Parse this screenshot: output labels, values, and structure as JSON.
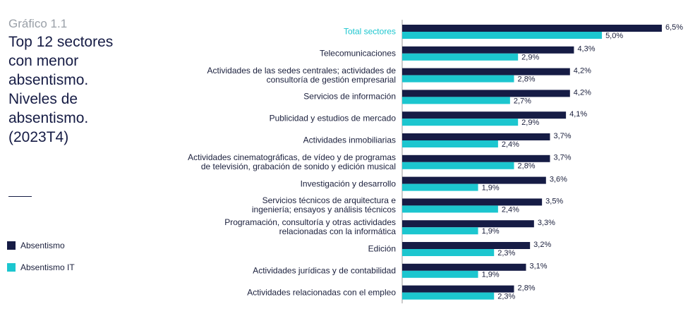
{
  "chart_data": {
    "type": "bar",
    "orientation": "horizontal",
    "subtitle": "Gráfico 1.1",
    "title": "Top 12 sectores con menor absentismo. Niveles de absentismo. (2023T4)",
    "categories": [
      "Total sectores",
      "Telecomunicaciones",
      "Actividades de las sedes centrales; actividades de\nconsultoría de gestión empresarial",
      "Servicios de información",
      "Publicidad y estudios de mercado",
      "Actividades inmobiliarias",
      "Actividades cinematográficas, de vídeo y de programas\nde televisión, grabación de sonido y edición musical",
      "Investigación y desarrollo",
      "Servicios técnicos de arquitectura e\ningeniería; ensayos y análisis técnicos",
      "Programación, consultoría y otras actividades\nrelacionadas con la informática",
      "Edición",
      "Actividades jurídicas y de contabilidad",
      "Actividades relacionadas con el empleo"
    ],
    "series": [
      {
        "name": "Absentismo",
        "color": "#161c45",
        "values": [
          6.5,
          4.3,
          4.2,
          4.2,
          4.1,
          3.7,
          3.7,
          3.6,
          3.5,
          3.3,
          3.2,
          3.1,
          2.8
        ],
        "value_labels": [
          "6,5%",
          "4,3%",
          "4,2%",
          "4,2%",
          "4,1%",
          "3,7%",
          "3,7%",
          "3,6%",
          "3,5%",
          "3,3%",
          "3,2%",
          "3,1%",
          "2,8%"
        ]
      },
      {
        "name": "Absentismo IT",
        "color": "#1cc6cf",
        "values": [
          5.0,
          2.9,
          2.8,
          2.7,
          2.9,
          2.4,
          2.8,
          1.9,
          2.4,
          1.9,
          2.3,
          1.9,
          2.3
        ],
        "value_labels": [
          "5,0%",
          "2,9%",
          "2,8%",
          "2,7%",
          "2,9%",
          "2,4%",
          "2,8%",
          "1,9%",
          "2,4%",
          "1,9%",
          "2,3%",
          "1,9%",
          "2,3%"
        ]
      }
    ]
  }
}
